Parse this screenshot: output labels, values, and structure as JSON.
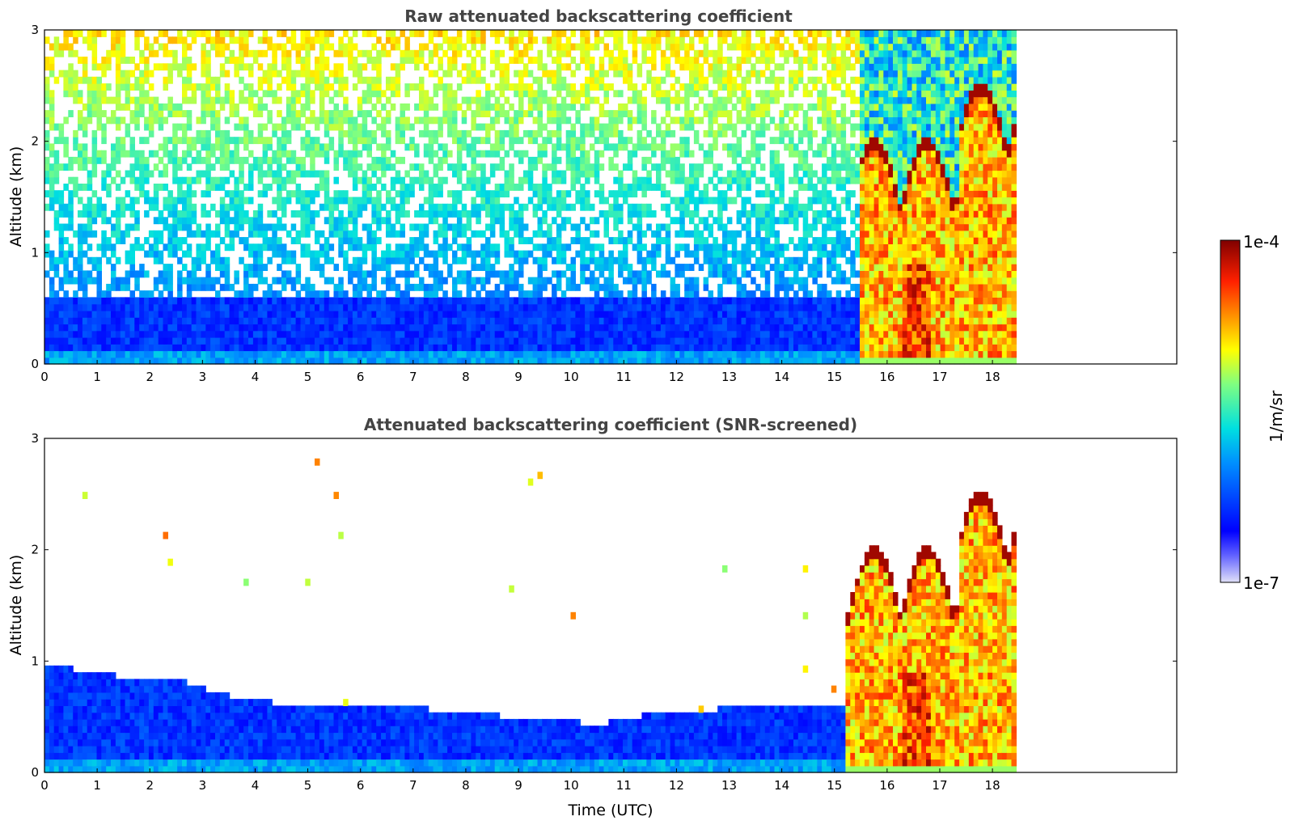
{
  "chart_data": [
    {
      "type": "heatmap",
      "title": "Raw attenuated backscattering coefficient",
      "xlabel": "",
      "ylabel": "Altitude (km)",
      "xlim": [
        0,
        21.5
      ],
      "ylim": [
        0,
        3
      ],
      "xticks": [
        "0",
        "1",
        "2",
        "3",
        "4",
        "5",
        "6",
        "7",
        "8",
        "9",
        "10",
        "11",
        "12",
        "13",
        "14",
        "15",
        "16",
        "17",
        "18"
      ],
      "yticks": [
        "0",
        "1",
        "2",
        "3"
      ],
      "data_end_time": 18.4,
      "cloud_onset_time": 15.4,
      "boundary_layer_top_km": 0.6
    },
    {
      "type": "heatmap",
      "title": "Attenuated backscattering coefficient (SNR-screened)",
      "xlabel": "Time (UTC)",
      "ylabel": "Altitude (km)",
      "xlim": [
        0,
        21.5
      ],
      "ylim": [
        0,
        3
      ],
      "xticks": [
        "0",
        "1",
        "2",
        "3",
        "4",
        "5",
        "6",
        "7",
        "8",
        "9",
        "10",
        "11",
        "12",
        "13",
        "14",
        "15",
        "16",
        "17",
        "18"
      ],
      "yticks": [
        "0",
        "1",
        "2",
        "3"
      ],
      "data_end_time": 18.4,
      "cloud_onset_time": 15.2,
      "boundary_layer_top_km": [
        [
          0,
          0.95
        ],
        [
          1,
          0.85
        ],
        [
          2.5,
          0.8
        ],
        [
          3.5,
          0.65
        ],
        [
          5,
          0.55
        ],
        [
          7,
          0.55
        ],
        [
          8,
          0.5
        ],
        [
          9.5,
          0.45
        ],
        [
          10.5,
          0.4
        ],
        [
          11.5,
          0.5
        ],
        [
          13,
          0.55
        ],
        [
          15.2,
          0.6
        ]
      ]
    }
  ],
  "colorbar": {
    "label": "1/m/sr",
    "max_label": "1e-4",
    "min_label": "1e-7",
    "colors": [
      "#e0e0f8",
      "#0000ff",
      "#00a0ff",
      "#00e0e0",
      "#80ff80",
      "#ffff00",
      "#ff8000",
      "#ff0000",
      "#800000"
    ]
  }
}
